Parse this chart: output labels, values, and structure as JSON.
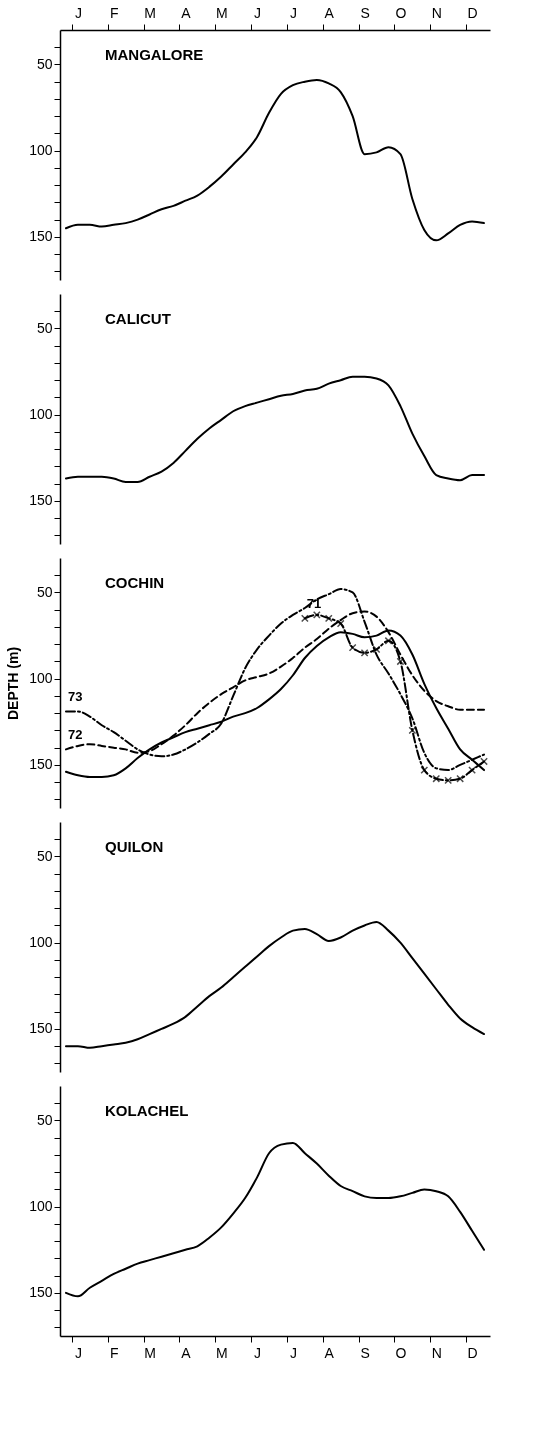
{
  "chart_data": [
    {
      "type": "line",
      "title": "MANGALORE",
      "categories": [
        null,
        "J",
        null,
        null,
        "F",
        null,
        null,
        "M",
        null,
        null,
        "A",
        null,
        null,
        "M",
        null,
        null,
        "J",
        null,
        null,
        "J",
        null,
        null,
        "A",
        null,
        null,
        "S",
        null,
        null,
        "O",
        null,
        null,
        "N",
        null,
        null,
        "D",
        null
      ],
      "ylim": [
        175,
        30
      ],
      "yticks": [
        {
          "value": 40,
          "label": null
        },
        50,
        {
          "value": 60,
          "label": null
        },
        {
          "value": 70,
          "label": null
        },
        {
          "value": 80,
          "label": null
        },
        {
          "value": 90,
          "label": null
        },
        100,
        {
          "value": 110,
          "label": null
        },
        {
          "value": 120,
          "label": null
        },
        {
          "value": 130,
          "label": null
        },
        {
          "value": 140,
          "label": null
        },
        150,
        {
          "value": 160,
          "label": null
        },
        {
          "value": 170,
          "label": null
        }
      ],
      "series": [
        {
          "color": "#000000",
          "line_style": "solid",
          "values": [
            145,
            143,
            143,
            144,
            143,
            142,
            140,
            137,
            134,
            132,
            129,
            126,
            121,
            115,
            108,
            101,
            92,
            78,
            67,
            62,
            60,
            59,
            61,
            66,
            80,
            102,
            101,
            98,
            102,
            128,
            146,
            152,
            148,
            143,
            141,
            142
          ]
        }
      ]
    },
    {
      "type": "line",
      "title": "CALICUT",
      "categories": [
        null,
        null,
        null,
        null,
        null,
        null,
        null,
        null,
        null,
        null,
        null,
        null,
        null,
        null,
        null,
        null,
        null,
        null,
        null,
        null,
        null,
        null,
        null,
        null,
        null,
        null,
        null,
        null,
        null,
        null,
        null,
        null,
        null,
        null,
        null,
        null
      ],
      "ylim": [
        175,
        30
      ],
      "yticks": [
        {
          "value": 40,
          "label": null
        },
        50,
        {
          "value": 60,
          "label": null
        },
        {
          "value": 70,
          "label": null
        },
        {
          "value": 80,
          "label": null
        },
        {
          "value": 90,
          "label": null
        },
        100,
        {
          "value": 110,
          "label": null
        },
        {
          "value": 120,
          "label": null
        },
        {
          "value": 130,
          "label": null
        },
        {
          "value": 140,
          "label": null
        },
        150,
        {
          "value": 160,
          "label": null
        },
        {
          "value": 170,
          "label": null
        }
      ],
      "tick_labels": "y",
      "series": [
        {
          "color": "#000000",
          "line_style": "solid",
          "values": [
            137,
            136,
            136,
            136,
            137,
            139,
            139,
            136,
            133,
            128,
            121,
            114,
            108,
            103,
            98,
            95,
            93,
            91,
            89,
            88,
            86,
            85,
            82,
            80,
            78,
            78,
            79,
            83,
            95,
            111,
            124,
            135,
            137,
            138,
            135,
            135
          ]
        }
      ]
    },
    {
      "type": "line",
      "title": "COCHIN",
      "ylabel": "DEPTH (m)",
      "categories": [
        null,
        null,
        null,
        null,
        null,
        null,
        null,
        null,
        null,
        null,
        null,
        null,
        null,
        null,
        null,
        null,
        null,
        null,
        null,
        null,
        null,
        null,
        null,
        null,
        null,
        null,
        null,
        null,
        null,
        null,
        null,
        null,
        null,
        null,
        null,
        null
      ],
      "ylim": [
        175,
        30
      ],
      "yticks": [
        {
          "value": 40,
          "label": null
        },
        50,
        {
          "value": 60,
          "label": null
        },
        {
          "value": 70,
          "label": null
        },
        {
          "value": 80,
          "label": null
        },
        {
          "value": 90,
          "label": null
        },
        100,
        {
          "value": 110,
          "label": null
        },
        {
          "value": 120,
          "label": null
        },
        {
          "value": 130,
          "label": null
        },
        {
          "value": 140,
          "label": null
        },
        150,
        {
          "value": 160,
          "label": null
        },
        {
          "value": 170,
          "label": null
        }
      ],
      "tick_labels": "y",
      "series": [
        {
          "color": "#000000",
          "line_style": "solid",
          "values": [
            154,
            156,
            157,
            157,
            156,
            152,
            146,
            141,
            137,
            134,
            131,
            129,
            127,
            125,
            122,
            120,
            117,
            112,
            106,
            98,
            88,
            81,
            76,
            73,
            74,
            76,
            75,
            72,
            75,
            86,
            103,
            117,
            129,
            141,
            147,
            153
          ]
        },
        {
          "name": "73",
          "color": "#000000",
          "line_style": "dashdot",
          "values": [
            119,
            119,
            122,
            127,
            131,
            136,
            141,
            144,
            145,
            144,
            141,
            137,
            132,
            126,
            110,
            94,
            83,
            75,
            68,
            63,
            59,
            54,
            51,
            48,
            50,
            67,
            86,
            97,
            109,
            123,
            143,
            152,
            153,
            150,
            147,
            144
          ]
        },
        {
          "name": "72",
          "color": "#000000",
          "line_style": "dashed",
          "values": [
            141,
            139,
            138,
            139,
            140,
            141,
            143,
            142,
            138,
            133,
            127,
            120,
            114,
            109,
            105,
            101,
            99,
            97,
            93,
            88,
            82,
            77,
            71,
            66,
            62,
            61,
            64,
            73,
            86,
            98,
            107,
            113,
            116,
            118,
            118,
            118
          ]
        },
        {
          "name": "71",
          "color": "#000000",
          "line_style": "dashdot",
          "marker": "cross",
          "values": [
            null,
            null,
            null,
            null,
            null,
            null,
            null,
            null,
            null,
            null,
            null,
            null,
            null,
            null,
            null,
            null,
            null,
            null,
            null,
            null,
            65,
            63,
            65,
            68,
            82,
            85,
            83,
            78,
            90,
            130,
            153,
            158,
            159,
            158,
            153,
            148
          ]
        }
      ]
    },
    {
      "type": "line",
      "title": "QUILON",
      "categories": [
        null,
        null,
        null,
        null,
        null,
        null,
        null,
        null,
        null,
        null,
        null,
        null,
        null,
        null,
        null,
        null,
        null,
        null,
        null,
        null,
        null,
        null,
        null,
        null,
        null,
        null,
        null,
        null,
        null,
        null,
        null,
        null,
        null,
        null,
        null,
        null
      ],
      "ylim": [
        175,
        30
      ],
      "yticks": [
        {
          "value": 40,
          "label": null
        },
        50,
        {
          "value": 60,
          "label": null
        },
        {
          "value": 70,
          "label": null
        },
        {
          "value": 80,
          "label": null
        },
        {
          "value": 90,
          "label": null
        },
        100,
        {
          "value": 110,
          "label": null
        },
        {
          "value": 120,
          "label": null
        },
        {
          "value": 130,
          "label": null
        },
        {
          "value": 140,
          "label": null
        },
        150,
        {
          "value": 160,
          "label": null
        },
        {
          "value": 170,
          "label": null
        }
      ],
      "tick_labels": "y",
      "series": [
        {
          "color": "#000000",
          "line_style": "solid",
          "values": [
            160,
            160,
            161,
            160,
            159,
            158,
            156,
            153,
            150,
            147,
            143,
            137,
            131,
            126,
            120,
            114,
            108,
            102,
            97,
            93,
            92,
            95,
            99,
            97,
            93,
            90,
            88,
            93,
            100,
            109,
            118,
            127,
            136,
            144,
            149,
            153
          ]
        }
      ]
    },
    {
      "type": "line",
      "title": "KOLACHEL",
      "categories": [
        null,
        "J",
        null,
        null,
        "F",
        null,
        null,
        "M",
        null,
        null,
        "A",
        null,
        null,
        "M",
        null,
        null,
        "J",
        null,
        null,
        "J",
        null,
        null,
        "A",
        null,
        null,
        "S",
        null,
        null,
        "O",
        null,
        null,
        "N",
        null,
        null,
        "D",
        null
      ],
      "ylim": [
        175,
        30
      ],
      "yticks": [
        {
          "value": 40,
          "label": null
        },
        50,
        {
          "value": 60,
          "label": null
        },
        {
          "value": 70,
          "label": null
        },
        {
          "value": 80,
          "label": null
        },
        {
          "value": 90,
          "label": null
        },
        100,
        {
          "value": 110,
          "label": null
        },
        {
          "value": 120,
          "label": null
        },
        {
          "value": 130,
          "label": null
        },
        {
          "value": 140,
          "label": null
        },
        150,
        {
          "value": 160,
          "label": null
        },
        {
          "value": 170,
          "label": null
        }
      ],
      "series": [
        {
          "color": "#000000",
          "line_style": "solid",
          "values": [
            150,
            152,
            147,
            143,
            139,
            136,
            133,
            131,
            129,
            127,
            125,
            123,
            118,
            112,
            104,
            95,
            83,
            69,
            64,
            63,
            69,
            75,
            82,
            88,
            91,
            94,
            95,
            95,
            94,
            92,
            90,
            91,
            94,
            103,
            114,
            125
          ]
        }
      ]
    }
  ]
}
